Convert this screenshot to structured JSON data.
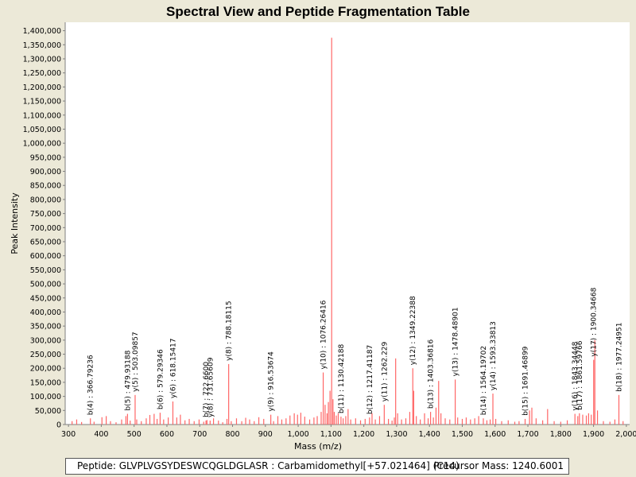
{
  "chart_data": {
    "type": "bar",
    "title": "Spectral View and Peptide Fragmentation Table",
    "xlabel": "Mass (m/z)",
    "ylabel": "Peak Intensity",
    "xlim": [
      290,
      2010
    ],
    "ylim": [
      0,
      1430000
    ],
    "x_ticks": [
      300,
      400,
      500,
      600,
      700,
      800,
      900,
      1000,
      1100,
      1200,
      1300,
      1400,
      1500,
      1600,
      1700,
      1800,
      1900,
      2000
    ],
    "x_tick_labels": [
      "300",
      "400",
      "500",
      "600",
      "700",
      "800",
      "900",
      "1,000",
      "1,100",
      "1,200",
      "1,300",
      "1,400",
      "1,500",
      "1,600",
      "1,700",
      "1,800",
      "1,900",
      "2,000"
    ],
    "y_ticks": [
      0,
      50000,
      100000,
      150000,
      200000,
      250000,
      300000,
      350000,
      400000,
      450000,
      500000,
      550000,
      600000,
      650000,
      700000,
      750000,
      800000,
      850000,
      900000,
      950000,
      1000000,
      1050000,
      1100000,
      1150000,
      1200000,
      1250000,
      1300000,
      1350000,
      1400000
    ],
    "y_tick_labels": [
      "0",
      "50,000",
      "100,000",
      "150,000",
      "200,000",
      "250,000",
      "300,000",
      "350,000",
      "400,000",
      "450,000",
      "500,000",
      "550,000",
      "600,000",
      "650,000",
      "700,000",
      "750,000",
      "800,000",
      "850,000",
      "900,000",
      "950,000",
      "1,000,000",
      "1,050,000",
      "1,100,000",
      "1,150,000",
      "1,200,000",
      "1,250,000",
      "1,300,000",
      "1,350,000",
      "1,400,000"
    ],
    "grid": false,
    "series": [
      {
        "name": "spectrum",
        "color": "#ff6666",
        "points": [
          [
            311,
            12000
          ],
          [
            325,
            18000
          ],
          [
            340,
            9000
          ],
          [
            366.79,
            22000
          ],
          [
            378,
            10000
          ],
          [
            402,
            26000
          ],
          [
            415,
            30000
          ],
          [
            428,
            12000
          ],
          [
            445,
            8000
          ],
          [
            462,
            18000
          ],
          [
            475,
            30000
          ],
          [
            479.93,
            38000
          ],
          [
            488,
            14000
          ],
          [
            503.09,
            105000
          ],
          [
            508,
            18000
          ],
          [
            522,
            12000
          ],
          [
            537,
            22000
          ],
          [
            548,
            34000
          ],
          [
            561,
            38000
          ],
          [
            570,
            20000
          ],
          [
            579.29,
            42000
          ],
          [
            590,
            18000
          ],
          [
            604,
            25000
          ],
          [
            618.15,
            82000
          ],
          [
            630,
            25000
          ],
          [
            641,
            35000
          ],
          [
            655,
            15000
          ],
          [
            668,
            20000
          ],
          [
            683,
            12000
          ],
          [
            698,
            18000
          ],
          [
            712,
            10000
          ],
          [
            719,
            14000
          ],
          [
            722,
            16000
          ],
          [
            731.65,
            14000
          ],
          [
            742,
            22000
          ],
          [
            757,
            14000
          ],
          [
            770,
            8000
          ],
          [
            783,
            20000
          ],
          [
            788.18,
            215000
          ],
          [
            796,
            12000
          ],
          [
            812,
            22000
          ],
          [
            828,
            12000
          ],
          [
            840,
            24000
          ],
          [
            852,
            18000
          ],
          [
            866,
            12000
          ],
          [
            880,
            26000
          ],
          [
            895,
            20000
          ],
          [
            916.53,
            35000
          ],
          [
            925,
            12000
          ],
          [
            938,
            30000
          ],
          [
            950,
            18000
          ],
          [
            963,
            22000
          ],
          [
            975,
            32000
          ],
          [
            988,
            40000
          ],
          [
            998,
            35000
          ],
          [
            1008,
            42000
          ],
          [
            1020,
            28000
          ],
          [
            1035,
            18000
          ],
          [
            1048,
            25000
          ],
          [
            1058,
            30000
          ],
          [
            1070,
            45000
          ],
          [
            1076.26,
            185000
          ],
          [
            1082,
            70000
          ],
          [
            1088,
            40000
          ],
          [
            1092,
            80000
          ],
          [
            1097,
            120000
          ],
          [
            1102,
            1375000
          ],
          [
            1106,
            90000
          ],
          [
            1110,
            45000
          ],
          [
            1116,
            32000
          ],
          [
            1122,
            40000
          ],
          [
            1130.42,
            28000
          ],
          [
            1137,
            22000
          ],
          [
            1145,
            30000
          ],
          [
            1152,
            55000
          ],
          [
            1160,
            18000
          ],
          [
            1175,
            22000
          ],
          [
            1190,
            15000
          ],
          [
            1204,
            20000
          ],
          [
            1217.41,
            25000
          ],
          [
            1225,
            40000
          ],
          [
            1235,
            18000
          ],
          [
            1248,
            30000
          ],
          [
            1262.23,
            70000
          ],
          [
            1275,
            20000
          ],
          [
            1286,
            14000
          ],
          [
            1293,
            25000
          ],
          [
            1297,
            235000
          ],
          [
            1303,
            40000
          ],
          [
            1315,
            18000
          ],
          [
            1328,
            22000
          ],
          [
            1340,
            45000
          ],
          [
            1349.22,
            200000
          ],
          [
            1352,
            120000
          ],
          [
            1360,
            30000
          ],
          [
            1372,
            18000
          ],
          [
            1385,
            40000
          ],
          [
            1396,
            22000
          ],
          [
            1403.37,
            45000
          ],
          [
            1412,
            25000
          ],
          [
            1420,
            60000
          ],
          [
            1428,
            155000
          ],
          [
            1435,
            40000
          ],
          [
            1448,
            22000
          ],
          [
            1462,
            18000
          ],
          [
            1478.49,
            160000
          ],
          [
            1486,
            25000
          ],
          [
            1500,
            20000
          ],
          [
            1512,
            25000
          ],
          [
            1525,
            18000
          ],
          [
            1538,
            22000
          ],
          [
            1550,
            30000
          ],
          [
            1564.2,
            22000
          ],
          [
            1575,
            15000
          ],
          [
            1585,
            18000
          ],
          [
            1593.34,
            110000
          ],
          [
            1602,
            20000
          ],
          [
            1620,
            12000
          ],
          [
            1640,
            15000
          ],
          [
            1660,
            10000
          ],
          [
            1673,
            12000
          ],
          [
            1691.47,
            20000
          ],
          [
            1705,
            50000
          ],
          [
            1712,
            60000
          ],
          [
            1725,
            22000
          ],
          [
            1745,
            15000
          ],
          [
            1760,
            55000
          ],
          [
            1780,
            12000
          ],
          [
            1800,
            10000
          ],
          [
            1820,
            15000
          ],
          [
            1843.34,
            38000
          ],
          [
            1852,
            30000
          ],
          [
            1857,
            40000
          ],
          [
            1867,
            35000
          ],
          [
            1878,
            32000
          ],
          [
            1885,
            40000
          ],
          [
            1893,
            35000
          ],
          [
            1900.35,
            230000
          ],
          [
            1904,
            300000
          ],
          [
            1912,
            50000
          ],
          [
            1930,
            12000
          ],
          [
            1950,
            10000
          ],
          [
            1965,
            18000
          ],
          [
            1977.25,
            105000
          ],
          [
            1990,
            12000
          ]
        ]
      }
    ],
    "annotations": [
      {
        "x": 366.79,
        "y": 22000,
        "text": "b(4) : 366.79236"
      },
      {
        "x": 479.93,
        "y": 38000,
        "text": "b(5) : 479.93188"
      },
      {
        "x": 503.09,
        "y": 105000,
        "text": "y(5) : 503.09857"
      },
      {
        "x": 579.29,
        "y": 42000,
        "text": "b(6) : 579.29346"
      },
      {
        "x": 618.15,
        "y": 82000,
        "text": "y(6) : 618.15417"
      },
      {
        "x": 719,
        "y": 14000,
        "text": "b(7) : 722.6600"
      },
      {
        "x": 731.65,
        "y": 14000,
        "text": "y(8) : 731.65609"
      },
      {
        "x": 788.18,
        "y": 215000,
        "text": "y(8) : 788.18115"
      },
      {
        "x": 916.53,
        "y": 35000,
        "text": "y(9) : 916.53674"
      },
      {
        "x": 1076.26,
        "y": 185000,
        "text": "y(10) : 1076.26416"
      },
      {
        "x": 1130.42,
        "y": 28000,
        "text": "b(11) : 1130.42188"
      },
      {
        "x": 1217.41,
        "y": 25000,
        "text": "b(12) : 1217.41187"
      },
      {
        "x": 1262.23,
        "y": 70000,
        "text": "y(11) : 1262.229"
      },
      {
        "x": 1349.22,
        "y": 200000,
        "text": "y(12) : 1349.22388"
      },
      {
        "x": 1403.37,
        "y": 45000,
        "text": "b(13) : 1403.36816"
      },
      {
        "x": 1478.49,
        "y": 160000,
        "text": "y(13) : 1478.48901"
      },
      {
        "x": 1564.2,
        "y": 22000,
        "text": "b(14) : 1564.19702"
      },
      {
        "x": 1593.34,
        "y": 110000,
        "text": "y(14) : 1593.33813"
      },
      {
        "x": 1691.47,
        "y": 20000,
        "text": "b(15) : 1691.46899"
      },
      {
        "x": 1843.34,
        "y": 38000,
        "text": "y(16) : 1843.34448"
      },
      {
        "x": 1857,
        "y": 40000,
        "text": "b(17) : 1861.59766"
      },
      {
        "x": 1900.35,
        "y": 230000,
        "text": "y(17) : 1900.34668"
      },
      {
        "x": 1977.25,
        "y": 105000,
        "text": "b(18) : 1977.24951"
      }
    ]
  },
  "footer": {
    "peptide": "Peptide: GLVPLVGSYDESWCQGLDGLASR : Carbamidomethyl[+57.021464] (C14)",
    "precursor": "Precursor Mass: 1240.6001"
  },
  "colors": {
    "background": "#ece9d8",
    "plot_background": "#ffffff",
    "peak": "#ff6666"
  }
}
